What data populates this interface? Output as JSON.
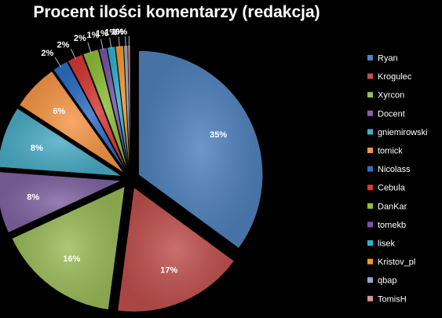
{
  "chart_data": {
    "type": "pie",
    "title": "Procent ilości komentarzy (redakcja)",
    "legend_position": "right",
    "slices": [
      {
        "name": "Ryan",
        "value": 35,
        "label": "35%",
        "color": "#4f81bd"
      },
      {
        "name": "Krogulec",
        "value": 17,
        "label": "17%",
        "color": "#c0504d"
      },
      {
        "name": "Xyrcon",
        "value": 16,
        "label": "16%",
        "color": "#9bbb59"
      },
      {
        "name": "Docent",
        "value": 8,
        "label": "8%",
        "color": "#8064a2"
      },
      {
        "name": "gniemirowski",
        "value": 8,
        "label": "8%",
        "color": "#4bacc6"
      },
      {
        "name": "tomick",
        "value": 6,
        "label": "6%",
        "color": "#f79646"
      },
      {
        "name": "Nicolass",
        "value": 2,
        "label": "2%",
        "color": "#2c6fc4"
      },
      {
        "name": "Cebula",
        "value": 2,
        "label": "2%",
        "color": "#d63a37"
      },
      {
        "name": "DanKar",
        "value": 2,
        "label": "2%",
        "color": "#8fbf3a"
      },
      {
        "name": "tomekb",
        "value": 1,
        "label": "1%",
        "color": "#7a56a8"
      },
      {
        "name": "lisek",
        "value": 1,
        "label": "1%",
        "color": "#2fb2d0"
      },
      {
        "name": "Kristov_pl",
        "value": 1,
        "label": "1%",
        "color": "#f39a2e"
      },
      {
        "name": "qbap",
        "value": 0.5,
        "label": "1%",
        "color": "#9aa6c8"
      },
      {
        "name": "TomisH",
        "value": 0.3,
        "label": "0%",
        "color": "#d89090"
      }
    ]
  }
}
